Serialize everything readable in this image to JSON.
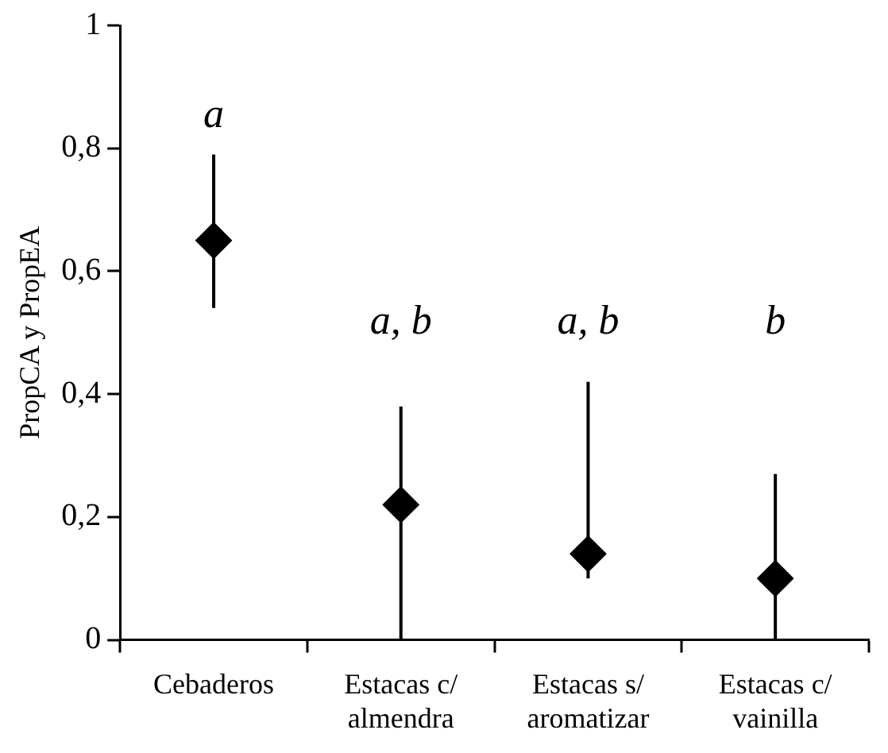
{
  "chart_data": {
    "type": "scatter",
    "ylabel": "PropCA y PropEA",
    "categories": [
      "Cebaderos",
      "Estacas c/ almendra",
      "Estacas s/ aromatizar",
      "Estacas c/ vainilla"
    ],
    "values": [
      0.65,
      0.22,
      0.14,
      0.1
    ],
    "errors": [
      [
        0.54,
        0.79
      ],
      [
        0,
        0.38
      ],
      [
        0.1,
        0.42
      ],
      [
        0,
        0.27
      ]
    ],
    "color": "#000000",
    "marker": "diamond",
    "ylim": [
      0,
      1
    ],
    "yticks": [
      0,
      {
        "value": 0.2,
        "label": "0,2"
      },
      {
        "value": 0.4,
        "label": "0,4"
      },
      {
        "value": 0.6,
        "label": "0,6"
      },
      {
        "value": 0.8,
        "label": "0,8"
      },
      1
    ],
    "grid": false,
    "legend": false,
    "annotations": [
      "a",
      "a, b",
      "a, b",
      "b"
    ]
  }
}
